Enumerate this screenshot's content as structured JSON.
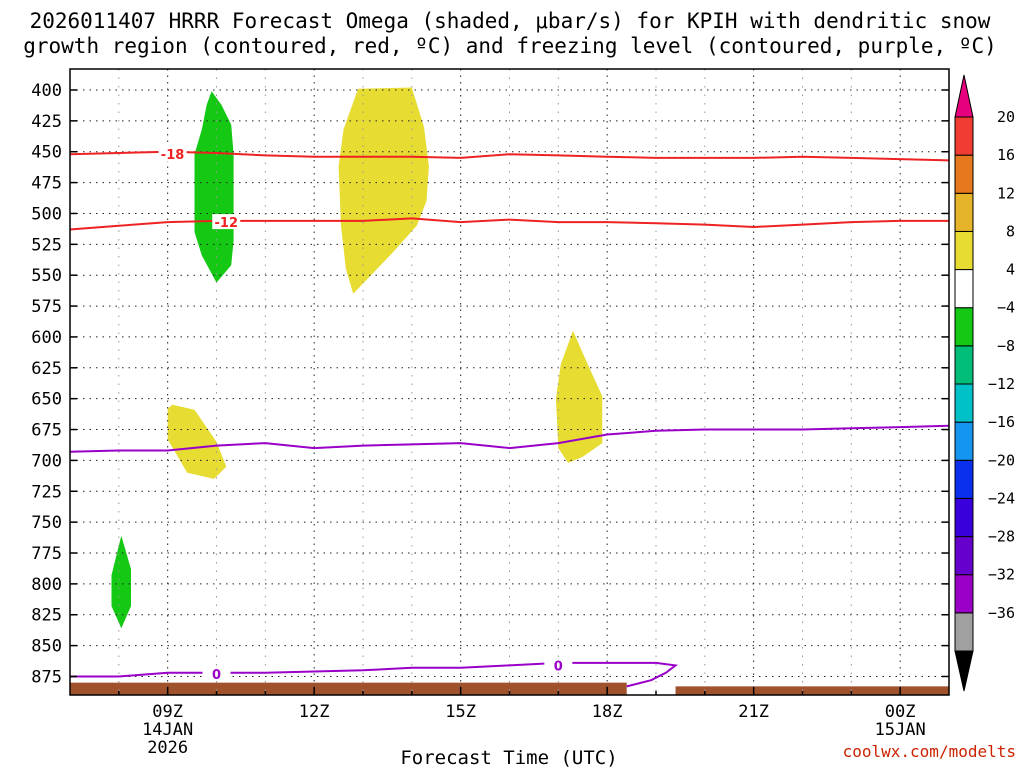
{
  "chart_data": {
    "type": "time-height",
    "title_lines": [
      "2026011407 HRRR Forecast Omega (shaded, μbar/s) for KPIH with dendritic snow",
      "growth region (contoured, red, ºC) and freezing level (contoured, purple, ºC)"
    ],
    "xlabel": "Forecast Time (UTC)",
    "credit": "coolwx.com/modelts",
    "x_range_hours": [
      7,
      25
    ],
    "y_range_mb": [
      383,
      890
    ],
    "y_ticks": [
      400,
      425,
      450,
      475,
      500,
      525,
      550,
      575,
      600,
      625,
      650,
      675,
      700,
      725,
      750,
      775,
      800,
      825,
      850,
      875
    ],
    "y_tick_labels": [
      "400",
      "425",
      "450",
      "475",
      "500",
      "525",
      "550",
      "575",
      "600",
      "625",
      "650",
      "675",
      "700",
      "725",
      "750",
      "775",
      "800",
      "825",
      "850",
      "875"
    ],
    "x_ticks": [
      {
        "hour": 9,
        "lines": [
          "09Z",
          "14JAN",
          "2026"
        ]
      },
      {
        "hour": 12,
        "lines": [
          "12Z"
        ]
      },
      {
        "hour": 15,
        "lines": [
          "15Z"
        ]
      },
      {
        "hour": 18,
        "lines": [
          "18Z"
        ]
      },
      {
        "hour": 21,
        "lines": [
          "21Z"
        ]
      },
      {
        "hour": 24,
        "lines": [
          "00Z",
          "15JAN"
        ]
      }
    ],
    "colorbar": {
      "levels": [
        -36,
        -32,
        -28,
        -24,
        -20,
        -16,
        -12,
        -8,
        -4,
        4,
        8,
        12,
        16,
        20
      ],
      "labels": [
        "20",
        "16",
        "12",
        "8",
        "4",
        "−4",
        "−8",
        "−12",
        "−16",
        "−20",
        "−24",
        "−28",
        "−32",
        "−36"
      ],
      "colors": [
        "#a0a0a0",
        "#9a00c8",
        "#6600cc",
        "#3a00dc",
        "#0a30ee",
        "#1496f0",
        "#00c0c8",
        "#00be78",
        "#14c814",
        "#ffffff",
        "#e6dc32",
        "#e6b428",
        "#e6781e",
        "#f03c32"
      ],
      "under_color": "#000000",
      "over_color": "#e6007e"
    },
    "shaded_regions": [
      {
        "name": "omega-green-upper",
        "color": "#14c814",
        "value_range": [
          -8,
          -4
        ],
        "polygon": [
          [
            9.9,
            401
          ],
          [
            10.1,
            412
          ],
          [
            10.3,
            428
          ],
          [
            10.35,
            452
          ],
          [
            10.35,
            478
          ],
          [
            10.35,
            522
          ],
          [
            10.3,
            542
          ],
          [
            10.0,
            556
          ],
          [
            9.7,
            534
          ],
          [
            9.55,
            515
          ],
          [
            9.55,
            490
          ],
          [
            9.55,
            452
          ],
          [
            9.7,
            432
          ],
          [
            9.8,
            412
          ]
        ]
      },
      {
        "name": "omega-green-lower",
        "color": "#14c814",
        "value_range": [
          -8,
          -4
        ],
        "polygon": [
          [
            8.05,
            761
          ],
          [
            8.25,
            788
          ],
          [
            8.25,
            818
          ],
          [
            8.05,
            836
          ],
          [
            7.85,
            818
          ],
          [
            7.85,
            793
          ]
        ]
      },
      {
        "name": "omega-yellow-upper",
        "color": "#e6dc32",
        "value_range": [
          4,
          8
        ],
        "polygon": [
          [
            12.9,
            399
          ],
          [
            14.0,
            398
          ],
          [
            14.25,
            430
          ],
          [
            14.35,
            462
          ],
          [
            14.3,
            490
          ],
          [
            14.1,
            510
          ],
          [
            13.6,
            532
          ],
          [
            12.8,
            565
          ],
          [
            12.65,
            545
          ],
          [
            12.55,
            510
          ],
          [
            12.5,
            462
          ],
          [
            12.6,
            432
          ]
        ]
      },
      {
        "name": "omega-yellow-middle",
        "color": "#e6dc32",
        "value_range": [
          4,
          8
        ],
        "polygon": [
          [
            9.1,
            655
          ],
          [
            9.0,
            658
          ],
          [
            9.0,
            683
          ],
          [
            9.4,
            710
          ],
          [
            9.95,
            715
          ],
          [
            10.2,
            705
          ],
          [
            10.0,
            685
          ],
          [
            9.55,
            659
          ]
        ]
      },
      {
        "name": "omega-yellow-lower",
        "color": "#e6dc32",
        "value_range": [
          4,
          8
        ],
        "polygon": [
          [
            17.3,
            595
          ],
          [
            17.6,
            622
          ],
          [
            17.9,
            648
          ],
          [
            17.9,
            686
          ],
          [
            17.5,
            697
          ],
          [
            17.2,
            702
          ],
          [
            17.0,
            690
          ],
          [
            16.95,
            650
          ],
          [
            17.05,
            622
          ]
        ]
      }
    ],
    "contours": [
      {
        "name": "dgz-minus-18",
        "label": "-18",
        "color": "#ee2222",
        "label_hour": 9.1,
        "label_mb": 452,
        "points": [
          [
            7,
            452
          ],
          [
            8,
            451
          ],
          [
            9,
            450
          ],
          [
            10,
            451
          ],
          [
            11,
            453
          ],
          [
            12,
            454
          ],
          [
            13,
            454
          ],
          [
            14,
            454
          ],
          [
            15,
            455
          ],
          [
            16,
            452
          ],
          [
            17,
            453
          ],
          [
            18,
            454
          ],
          [
            19,
            455
          ],
          [
            20,
            455
          ],
          [
            21,
            455
          ],
          [
            22,
            454
          ],
          [
            23,
            455
          ],
          [
            24,
            456
          ],
          [
            25,
            457
          ]
        ]
      },
      {
        "name": "dgz-minus-12",
        "label": "-12",
        "color": "#ee2222",
        "label_hour": 10.2,
        "label_mb": 507,
        "points": [
          [
            7,
            513
          ],
          [
            8,
            510
          ],
          [
            9,
            507
          ],
          [
            10,
            506
          ],
          [
            11,
            506
          ],
          [
            12,
            506
          ],
          [
            13,
            506
          ],
          [
            14,
            504
          ],
          [
            15,
            507
          ],
          [
            16,
            505
          ],
          [
            17,
            507
          ],
          [
            18,
            507
          ],
          [
            19,
            508
          ],
          [
            20,
            509
          ],
          [
            21,
            511
          ],
          [
            22,
            509
          ],
          [
            23,
            507
          ],
          [
            24,
            506
          ],
          [
            25,
            506
          ]
        ]
      },
      {
        "name": "freezing-level-upper",
        "label": "",
        "color": "#9a00c8",
        "label_hour": 0,
        "label_mb": 0,
        "points": [
          [
            7,
            693
          ],
          [
            8,
            692
          ],
          [
            9,
            692
          ],
          [
            10,
            688
          ],
          [
            11,
            686
          ],
          [
            12,
            690
          ],
          [
            13,
            688
          ],
          [
            14,
            687
          ],
          [
            15,
            686
          ],
          [
            16,
            690
          ],
          [
            17,
            686
          ],
          [
            18,
            679
          ],
          [
            19,
            676
          ],
          [
            20,
            675
          ],
          [
            21,
            675
          ],
          [
            22,
            675
          ],
          [
            23,
            674
          ],
          [
            24,
            673
          ],
          [
            25,
            672
          ]
        ]
      },
      {
        "name": "freezing-level-lower",
        "label": "0",
        "color": "#9a00c8",
        "label_hour": 10.0,
        "label_mb": 873,
        "points": [
          [
            7,
            875
          ],
          [
            8,
            875
          ],
          [
            9,
            872
          ],
          [
            10,
            872
          ],
          [
            11,
            872
          ],
          [
            12,
            871
          ],
          [
            13,
            870
          ],
          [
            14,
            868
          ],
          [
            15,
            868
          ],
          [
            16,
            866
          ],
          [
            17,
            864
          ],
          [
            18,
            864
          ],
          [
            19,
            864
          ],
          [
            19.4,
            866
          ],
          [
            19.2,
            872
          ],
          [
            18.9,
            878
          ],
          [
            18.4,
            883
          ]
        ]
      },
      {
        "name": "freezing-level-lower-label-2",
        "label": "0",
        "color": "#9a00c8",
        "label_hour": 17.0,
        "label_mb": 866,
        "points": []
      }
    ],
    "ground": {
      "color": "#a0522d",
      "top_mb": 880
    }
  }
}
